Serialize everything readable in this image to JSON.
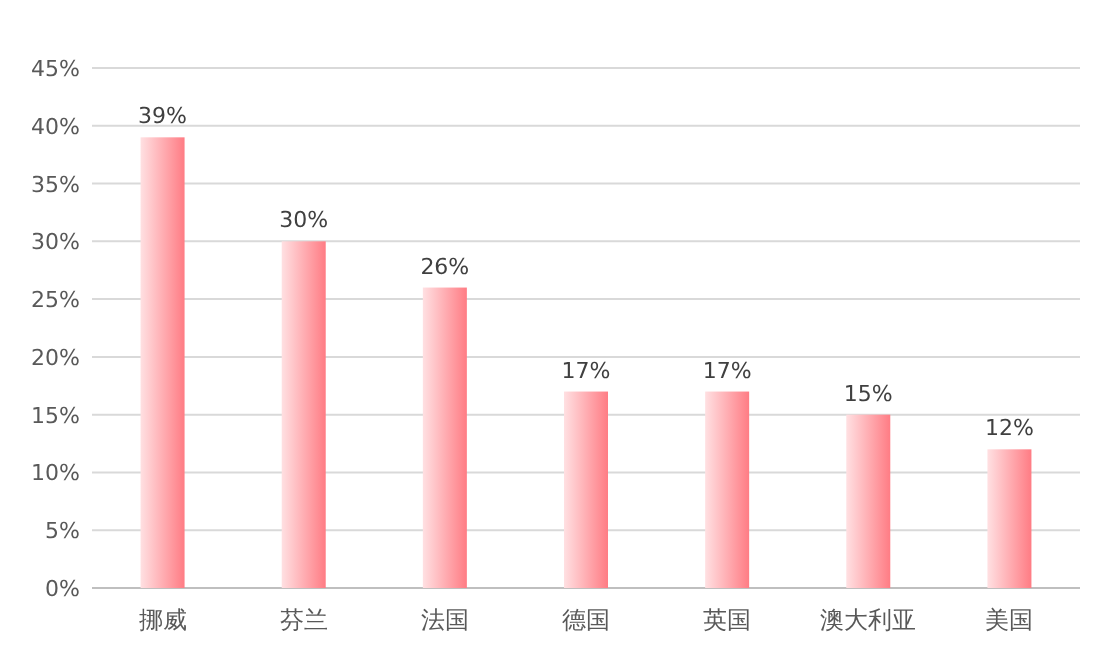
{
  "chart_data": {
    "type": "bar",
    "categories": [
      "挪威",
      "芬兰",
      "法国",
      "德国",
      "英国",
      "澳大利亚",
      "美国"
    ],
    "values": [
      39,
      30,
      26,
      17,
      17,
      15,
      12
    ],
    "value_labels": [
      "39%",
      "30%",
      "26%",
      "17%",
      "17%",
      "15%",
      "12%"
    ],
    "color": "#ff7c84",
    "ylim": [
      0,
      45
    ],
    "yticks": [
      {
        "value": 0,
        "label": "0%"
      },
      {
        "value": 5,
        "label": "5%"
      },
      {
        "value": 10,
        "label": "10%"
      },
      {
        "value": 15,
        "label": "15%"
      },
      {
        "value": 20,
        "label": "20%"
      },
      {
        "value": 25,
        "label": "25%"
      },
      {
        "value": 30,
        "label": "30%"
      },
      {
        "value": 35,
        "label": "35%"
      },
      {
        "value": 40,
        "label": "40%"
      },
      {
        "value": 45,
        "label": "45%"
      }
    ],
    "grid": "y"
  }
}
